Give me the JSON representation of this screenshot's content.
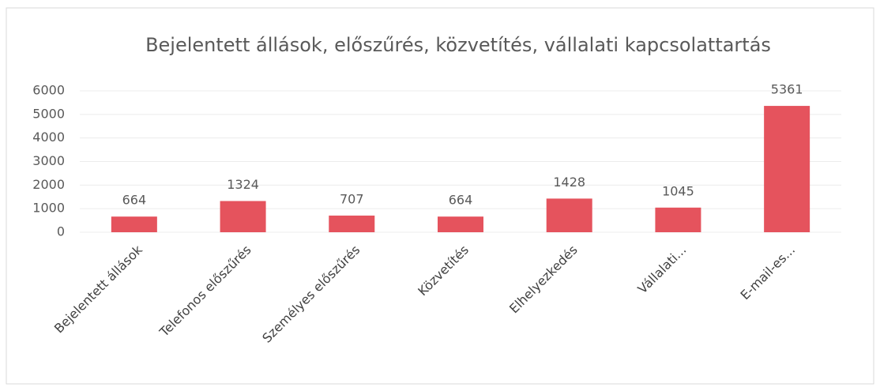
{
  "chart_data": {
    "type": "bar",
    "title": "Bejelentett állások, előszűrés, közvetítés, vállalati kapcsolattartás",
    "categories": [
      "Bejelentett állások",
      "Telefonos előszűrés",
      "Személyes előszűrés",
      "Közvetítés",
      "Elhelyezkedés",
      "Vállalati...",
      "E-mail-es..."
    ],
    "values": [
      664,
      1324,
      707,
      664,
      1428,
      1045,
      5361
    ],
    "color": "#e5535d",
    "ylim": [
      0,
      6000
    ],
    "yticks": [
      0,
      1000,
      2000,
      3000,
      4000,
      5000,
      6000
    ],
    "grid": true
  }
}
